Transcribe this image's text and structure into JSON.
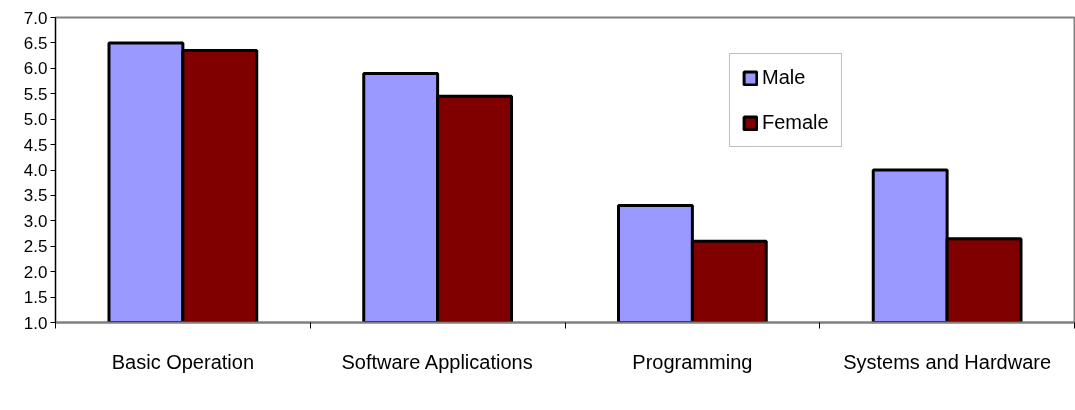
{
  "chart_data": {
    "type": "bar",
    "categories": [
      "Basic Operation",
      "Software Applications",
      "Programming",
      "Systems and Hardware"
    ],
    "series": [
      {
        "name": "Male",
        "color": "#9999ff",
        "values": [
          6.5,
          5.9,
          3.3,
          4.0
        ]
      },
      {
        "name": "Female",
        "color": "#800000",
        "values": [
          6.35,
          5.45,
          2.6,
          2.65
        ]
      }
    ],
    "ylim": [
      1,
      7
    ],
    "yticks": [
      {
        "value": 1,
        "label": "1.0"
      },
      {
        "value": 1.5,
        "label": "1.5"
      },
      {
        "value": 2,
        "label": "2.0"
      },
      {
        "value": 2.5,
        "label": "2.5"
      },
      {
        "value": 3,
        "label": "3.0"
      },
      {
        "value": 3.5,
        "label": "3.5"
      },
      {
        "value": 4,
        "label": "4.0"
      },
      {
        "value": 4.5,
        "label": "4.5"
      },
      {
        "value": 5,
        "label": "5.0"
      },
      {
        "value": 5.5,
        "label": "5.5"
      },
      {
        "value": 6,
        "label": "6.0"
      },
      {
        "value": 6.5,
        "label": "6.5"
      },
      {
        "value": 7,
        "label": "7.0"
      }
    ],
    "grid": false,
    "legend": "top right"
  }
}
